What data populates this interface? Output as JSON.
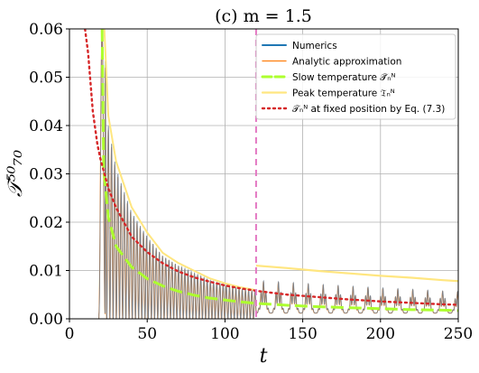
{
  "chart_data": {
    "type": "line",
    "title": "(c) m = 1.5",
    "xlabel": "t",
    "ylabel": "𝒯⁵⁰₇₀",
    "xlim": [
      0,
      250
    ],
    "ylim": [
      0,
      0.06
    ],
    "xticks": [
      "0",
      "50",
      "100",
      "150",
      "200",
      "250"
    ],
    "yticks": [
      "0.00",
      "0.01",
      "0.02",
      "0.03",
      "0.04",
      "0.05",
      "0.06"
    ],
    "grid": true,
    "legend_position": "top-right",
    "vline_x": 120,
    "series": [
      {
        "name": "Numerics",
        "color": "#1f77b4",
        "style": "solid",
        "description": "oscillating peaks under envelope",
        "envelope": {
          "x": [
            20,
            22,
            25,
            30,
            40,
            50,
            60,
            70,
            80,
            90,
            100,
            110,
            119
          ],
          "y": [
            0.06,
            0.06,
            0.04,
            0.031,
            0.022,
            0.017,
            0.013,
            0.011,
            0.0095,
            0.008,
            0.007,
            0.0062,
            0.0057
          ]
        }
      },
      {
        "name": "Analytic approximation",
        "color": "#ff7f0e",
        "style": "solid"
      },
      {
        "name": "Slow temperature 𝒯̄ₙᴺ",
        "color": "#adff2f",
        "style": "dashed",
        "x": [
          21,
          22,
          25,
          30,
          40,
          50,
          60,
          70,
          80,
          90,
          100,
          110,
          120,
          140,
          160,
          180,
          200,
          220,
          240,
          250
        ],
        "y": [
          0.06,
          0.031,
          0.021,
          0.015,
          0.0107,
          0.0083,
          0.0068,
          0.0057,
          0.0049,
          0.0043,
          0.0039,
          0.0035,
          0.0032,
          0.0028,
          0.0025,
          0.0023,
          0.0021,
          0.0019,
          0.0018,
          0.0017
        ]
      },
      {
        "name": "Peak temperature 𝔗ₙᴺ",
        "color": "#ffe680",
        "style": "solid",
        "x": [
          120,
          140,
          160,
          180,
          200,
          220,
          240,
          250
        ],
        "y": [
          0.011,
          0.0105,
          0.0099,
          0.0094,
          0.0089,
          0.0085,
          0.008,
          0.0078
        ]
      },
      {
        "name": "𝒯ₙᴺ at fixed position by Eq. (7.3)",
        "color": "#d62728",
        "style": "dotted",
        "x": [
          10,
          12,
          15,
          18,
          20,
          25,
          30,
          40,
          50,
          60,
          70,
          80,
          90,
          100,
          110,
          120,
          140,
          160,
          180,
          200,
          220,
          240,
          250
        ],
        "y": [
          0.06,
          0.055,
          0.043,
          0.036,
          0.033,
          0.027,
          0.023,
          0.017,
          0.0138,
          0.0115,
          0.0098,
          0.0086,
          0.0077,
          0.0069,
          0.0063,
          0.0058,
          0.005,
          0.0045,
          0.004,
          0.0036,
          0.0033,
          0.003,
          0.0029
        ]
      }
    ],
    "legend": [
      "Numerics",
      "Analytic approximation",
      "Slow temperature 𝒯̄ₙᴺ",
      "Peak temperature 𝔗ₙᴺ",
      "𝒯ₙᴺ at fixed position by Eq. (7.3)"
    ]
  }
}
